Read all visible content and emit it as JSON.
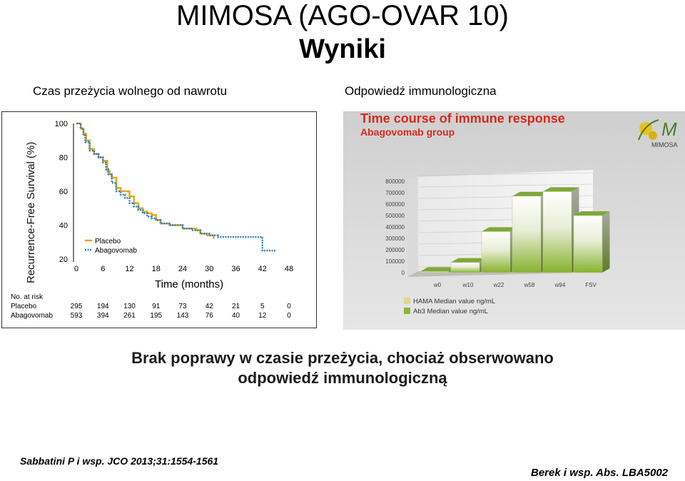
{
  "slide": {
    "title_line1": "MIMOSA (AGO-OVAR 10)",
    "title_line2": "Wyniki",
    "caption_left": "Czas przeżycia wolnego od nawrotu",
    "caption_right": "Odpowiedź immunologiczna",
    "conclusion_line1": "Brak poprawy w czasie przeżycia, chociaż obserwowano",
    "conclusion_line2": "odpowiedź immunologiczną",
    "reference_left": "Sabbatini P i wsp. JCO 2013;31:1554-1561",
    "reference_right": "Berek i wsp. Abs. LBA5002"
  },
  "chart_data": [
    {
      "type": "line",
      "title": "",
      "xlabel": "Time (months)",
      "ylabel": "Recurrence-Free Survival (%)",
      "xlim": [
        0,
        48
      ],
      "ylim": [
        20,
        100
      ],
      "x_ticks": [
        "0",
        "6",
        "12",
        "18",
        "24",
        "30",
        "36",
        "42",
        "48"
      ],
      "y_ticks": [
        "20",
        "40",
        "60",
        "80",
        "100"
      ],
      "legend_position": "bottom-left",
      "series": [
        {
          "name": "Placebo",
          "color": "#e6a817",
          "style": "solid",
          "x": [
            0,
            1,
            1.6,
            2.2,
            3,
            4,
            5,
            6,
            7,
            7.5,
            8,
            9,
            10,
            12,
            13,
            14,
            15,
            16,
            17,
            18,
            19,
            21,
            24,
            27,
            28,
            29.5,
            31
          ],
          "y": [
            100,
            97,
            94,
            90,
            85,
            82,
            80,
            78,
            72,
            70,
            68,
            62,
            60,
            57,
            53,
            50,
            48,
            47,
            46,
            43,
            41,
            40,
            38,
            37,
            35,
            34,
            32
          ]
        },
        {
          "name": "Abagovomab",
          "color": "#2f7dc1",
          "style": "dotted",
          "x": [
            0,
            1,
            1.6,
            2,
            3,
            4,
            5,
            6,
            6.7,
            7.2,
            8,
            9,
            10,
            11,
            12,
            13,
            14,
            15,
            16,
            17,
            18,
            19,
            21,
            24,
            26,
            28,
            30,
            32,
            36,
            38,
            40,
            42,
            43,
            45
          ],
          "y": [
            100,
            97,
            93,
            89,
            84,
            82,
            80,
            77,
            73,
            70,
            65,
            60,
            58,
            56,
            53,
            51,
            49,
            47,
            45,
            44,
            43,
            41,
            40,
            38,
            37,
            35,
            34,
            33,
            33,
            33,
            33,
            25,
            25,
            25
          ]
        }
      ],
      "risk_table": {
        "header": "No. at risk",
        "rows": [
          {
            "label": "Placebo",
            "values": [
              "295",
              "194",
              "130",
              "91",
              "73",
              "42",
              "21",
              "5",
              "0"
            ]
          },
          {
            "label": "Abagovomab",
            "values": [
              "593",
              "394",
              "261",
              "195",
              "143",
              "76",
              "40",
              "12",
              "0"
            ]
          }
        ]
      }
    },
    {
      "type": "bar",
      "title": "Time course of immune response",
      "subtitle": "Abagovomab group",
      "logo_text": "MIMOSA",
      "categories": [
        "w0",
        "w10",
        "w22",
        "w58",
        "w94",
        "FSV"
      ],
      "ylim": [
        0,
        800000
      ],
      "y_ticks": [
        "800000",
        "700000",
        "600000",
        "500000",
        "400000",
        "300000",
        "200000",
        "100000",
        "0"
      ],
      "legend_position": "bottom",
      "series": [
        {
          "name": "HAMA Median value ng/mL",
          "color": "#e3d58a",
          "values": [
            0,
            0,
            0,
            0,
            0,
            0
          ]
        },
        {
          "name": "Ab3 Median value ng/mL",
          "color": "#8bb33a",
          "values": [
            0,
            0,
            0,
            0,
            0,
            0
          ]
        },
        {
          "name": "Abagovomab group",
          "color": "#8bb33a",
          "values": [
            10000,
            90000,
            360000,
            670000,
            710000,
            500000
          ]
        }
      ]
    }
  ]
}
